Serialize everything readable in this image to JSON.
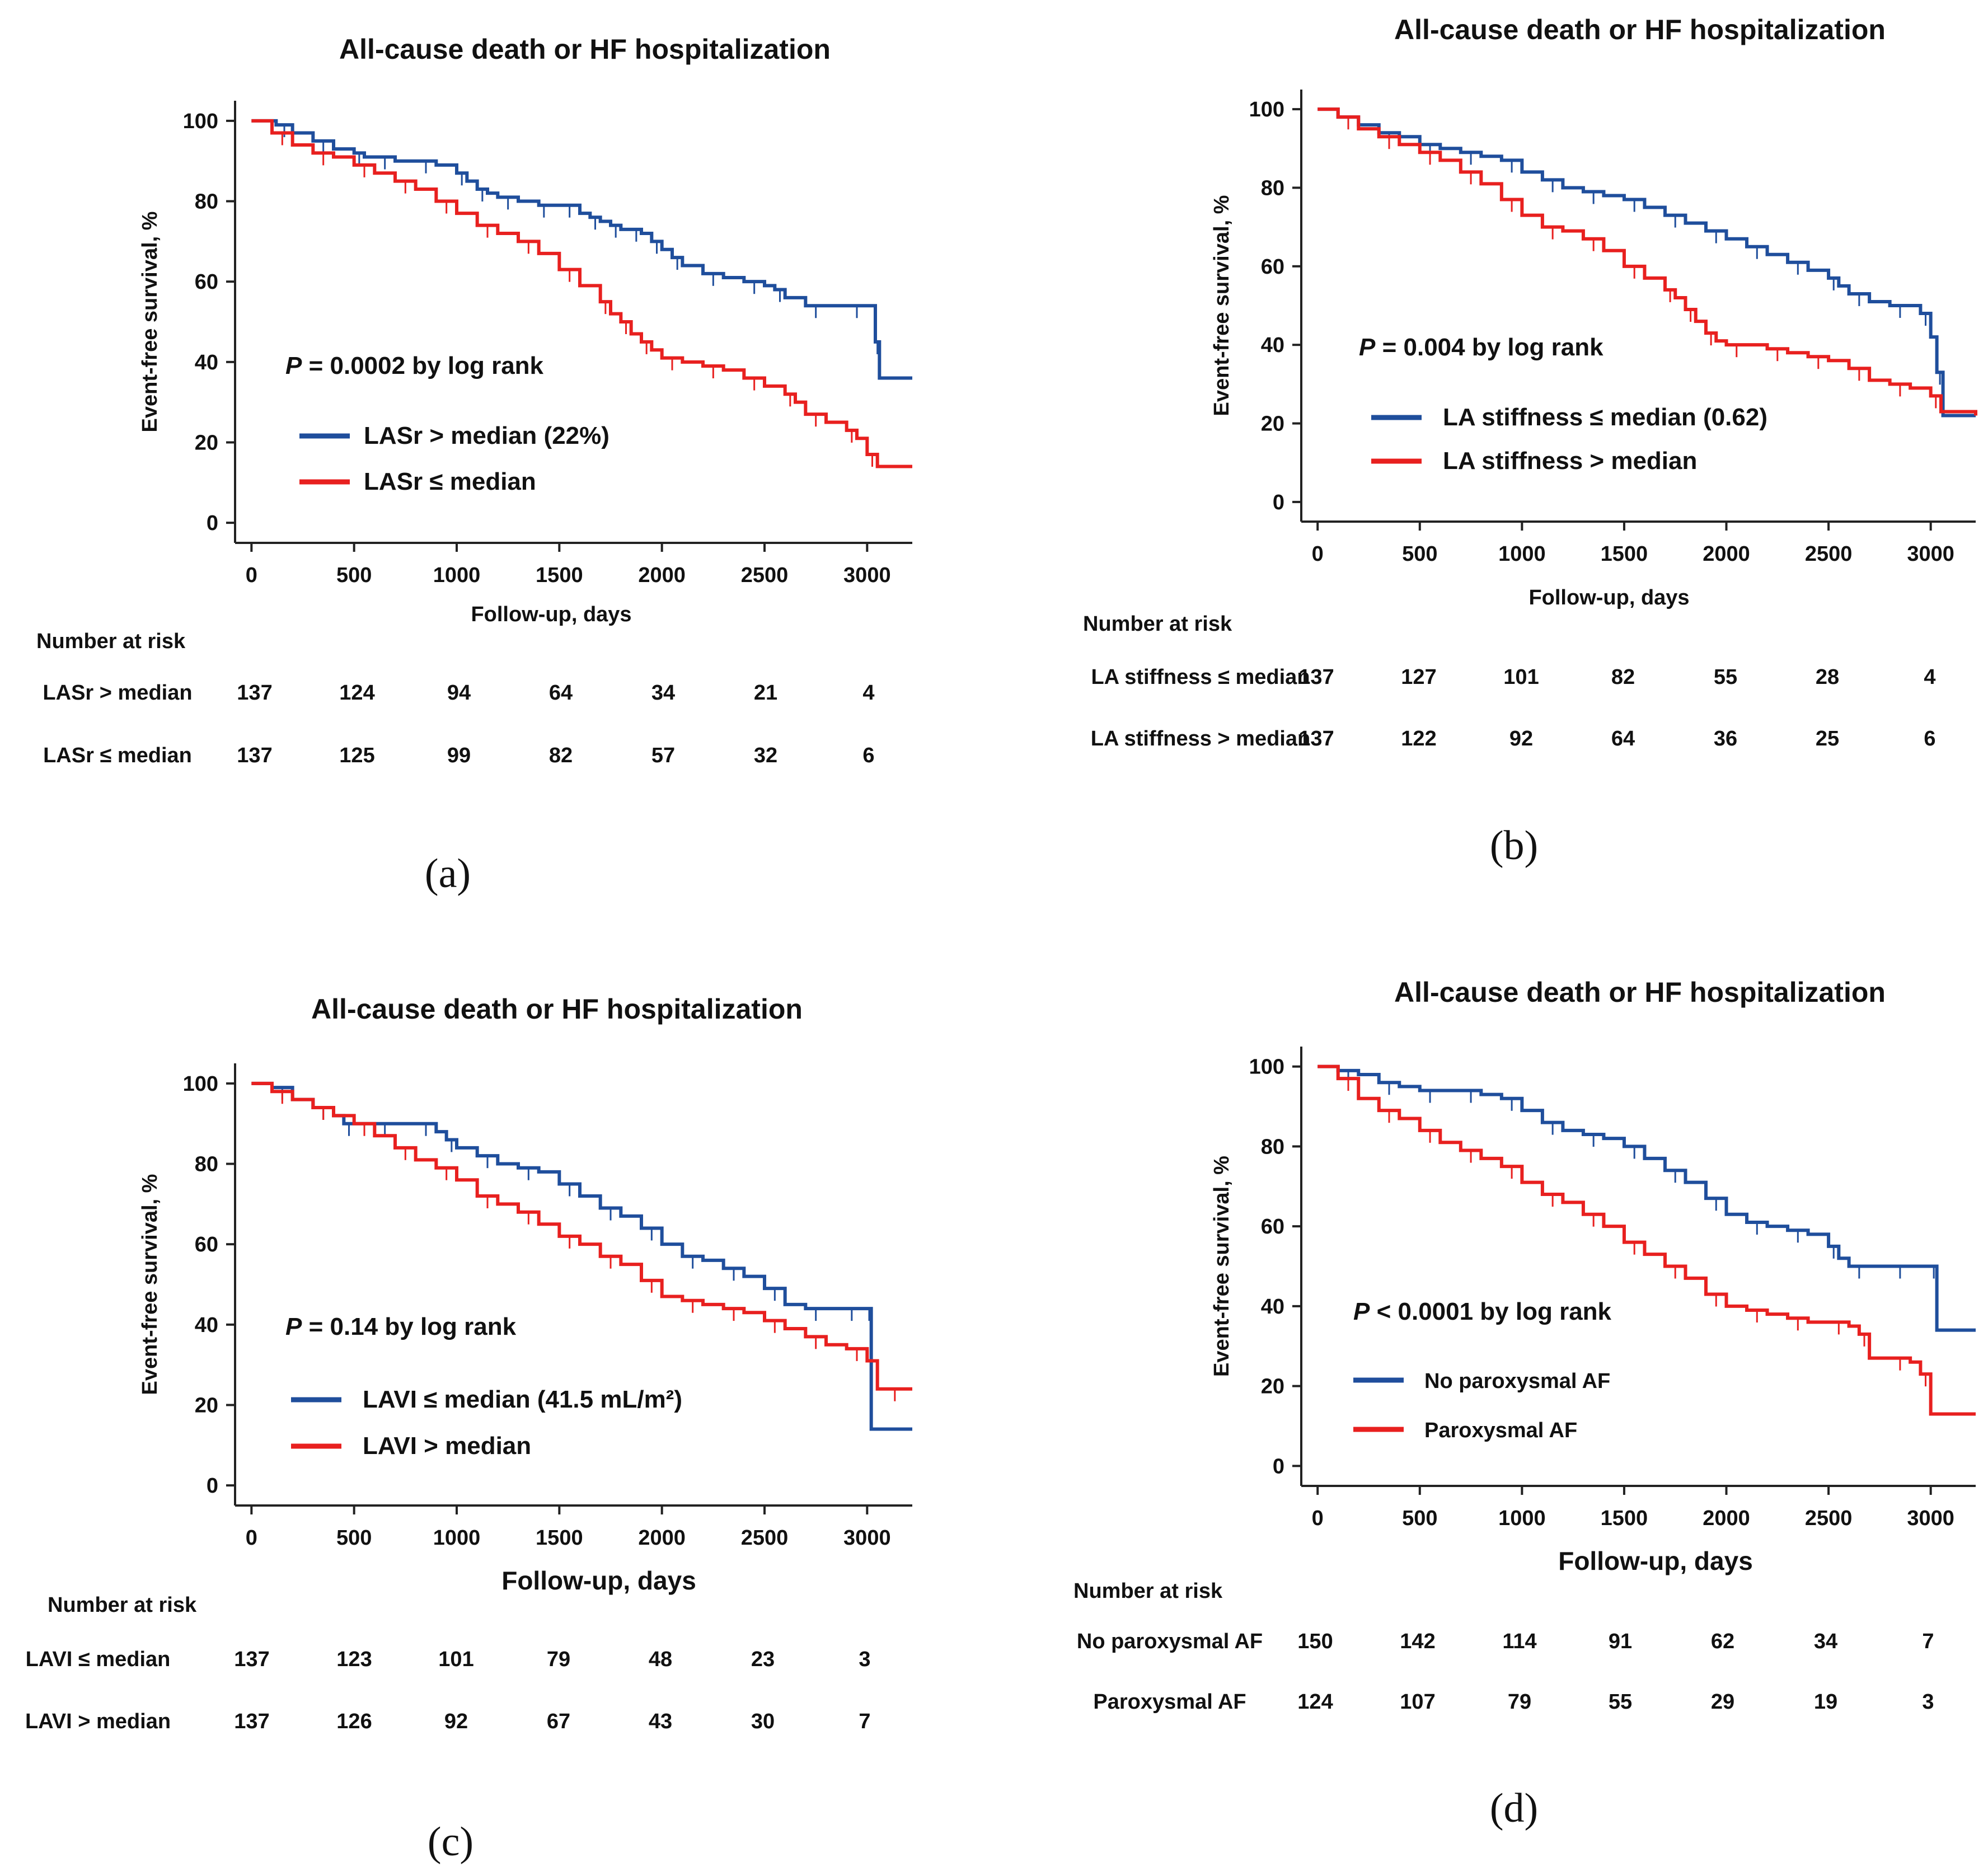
{
  "colors": {
    "blue": "#1f4e9c",
    "red": "#e8201f"
  },
  "chart_data": [
    {
      "type": "line",
      "panel_label": "(a)",
      "title": "All-cause death or HF hospitalization",
      "xlabel": "Follow-up, days",
      "ylabel": "Event-free survival, %",
      "xlim": [
        -80,
        3220
      ],
      "ylim": [
        -5,
        105
      ],
      "xticks": [
        0,
        500,
        1000,
        1500,
        2000,
        2500,
        3000
      ],
      "yticks": [
        0,
        20,
        40,
        60,
        80,
        100
      ],
      "pvalue": {
        "prefix": "P",
        "text": " = 0.0002 by log rank"
      },
      "series": [
        {
          "name": "LASr > median (22%)",
          "risk_label": "LASr > median",
          "color": "blue",
          "x": [
            0,
            120,
            200,
            300,
            400,
            500,
            550,
            600,
            700,
            800,
            900,
            1000,
            1050,
            1100,
            1150,
            1200,
            1300,
            1400,
            1450,
            1500,
            1600,
            1650,
            1700,
            1750,
            1800,
            1850,
            1900,
            1950,
            2000,
            2050,
            2100,
            2200,
            2300,
            2400,
            2500,
            2550,
            2600,
            2700,
            2800,
            2900,
            3000,
            3040,
            3060,
            3220
          ],
          "y": [
            100,
            99,
            97,
            95,
            93,
            92,
            91,
            91,
            90,
            90,
            89,
            87,
            85,
            83,
            82,
            81,
            80,
            79,
            79,
            79,
            77,
            76,
            75,
            74,
            73,
            73,
            72,
            70,
            68,
            66,
            64,
            62,
            61,
            60,
            59,
            58,
            56,
            54,
            54,
            54,
            54,
            45,
            36,
            36
          ],
          "risk": [
            137,
            124,
            94,
            64,
            34,
            21,
            4
          ]
        },
        {
          "name": "LASr ≤ median",
          "risk_label": "LASr ≤ median",
          "color": "red",
          "x": [
            0,
            100,
            200,
            300,
            400,
            500,
            600,
            700,
            800,
            900,
            1000,
            1100,
            1200,
            1300,
            1400,
            1500,
            1600,
            1700,
            1750,
            1800,
            1850,
            1900,
            1950,
            2000,
            2100,
            2200,
            2300,
            2400,
            2500,
            2600,
            2650,
            2700,
            2800,
            2900,
            2950,
            3000,
            3050,
            3220
          ],
          "y": [
            100,
            97,
            94,
            92,
            91,
            89,
            87,
            85,
            83,
            80,
            77,
            74,
            72,
            70,
            67,
            63,
            59,
            55,
            52,
            50,
            47,
            45,
            43,
            41,
            40,
            39,
            38,
            36,
            34,
            32,
            30,
            27,
            25,
            23,
            21,
            17,
            14,
            14
          ],
          "risk": [
            137,
            125,
            99,
            82,
            57,
            32,
            6
          ]
        }
      ],
      "risk_header": "Number at risk",
      "risk_times": [
        0,
        500,
        1000,
        1500,
        2000,
        2500,
        3000
      ]
    },
    {
      "type": "line",
      "panel_label": "(b)",
      "title": "All-cause death or HF hospitalization",
      "xlabel": "Follow-up, days",
      "ylabel": "Event-free survival, %",
      "xlim": [
        -80,
        3220
      ],
      "ylim": [
        -5,
        105
      ],
      "xticks": [
        0,
        500,
        1000,
        1500,
        2000,
        2500,
        3000
      ],
      "yticks": [
        0,
        20,
        40,
        60,
        80,
        100
      ],
      "pvalue": {
        "prefix": "P",
        "text": " = 0.004 by log rank"
      },
      "series": [
        {
          "name": "LA stiffness ≤ median (0.62)",
          "risk_label": "LA stiffness ≤ median",
          "color": "blue",
          "x": [
            0,
            100,
            200,
            300,
            400,
            500,
            600,
            700,
            800,
            900,
            1000,
            1100,
            1200,
            1300,
            1400,
            1500,
            1600,
            1700,
            1800,
            1900,
            2000,
            2100,
            2200,
            2300,
            2400,
            2500,
            2550,
            2600,
            2700,
            2800,
            2900,
            2950,
            3000,
            3030,
            3060,
            3220
          ],
          "y": [
            100,
            98,
            96,
            94,
            93,
            91,
            90,
            89,
            88,
            87,
            84,
            82,
            80,
            79,
            78,
            77,
            75,
            73,
            71,
            69,
            67,
            65,
            63,
            61,
            59,
            57,
            55,
            53,
            51,
            50,
            50,
            48,
            42,
            33,
            22,
            22
          ],
          "risk": [
            137,
            127,
            101,
            82,
            55,
            28,
            4
          ]
        },
        {
          "name": "LA stiffness > median",
          "risk_label": "LA stiffness > median",
          "color": "red",
          "x": [
            0,
            100,
            200,
            300,
            400,
            500,
            600,
            700,
            800,
            900,
            1000,
            1100,
            1200,
            1300,
            1400,
            1500,
            1600,
            1700,
            1750,
            1800,
            1850,
            1900,
            1950,
            2000,
            2100,
            2200,
            2300,
            2400,
            2500,
            2600,
            2700,
            2800,
            2900,
            3000,
            3050,
            3220
          ],
          "y": [
            100,
            98,
            95,
            93,
            91,
            89,
            87,
            84,
            81,
            77,
            73,
            70,
            69,
            67,
            64,
            60,
            57,
            54,
            52,
            49,
            46,
            43,
            41,
            40,
            40,
            39,
            38,
            37,
            36,
            34,
            31,
            30,
            29,
            27,
            23,
            22
          ],
          "risk": [
            137,
            122,
            92,
            64,
            36,
            25,
            6
          ]
        }
      ],
      "risk_header": "Number at risk",
      "risk_times": [
        0,
        500,
        1000,
        1500,
        2000,
        2500,
        3000
      ]
    },
    {
      "type": "line",
      "panel_label": "(c)",
      "title": "All-cause death or HF hospitalization",
      "xlabel": "Follow-up, days",
      "ylabel": "Event-free survival, %",
      "xlim": [
        -80,
        3220
      ],
      "ylim": [
        -5,
        105
      ],
      "xticks": [
        0,
        500,
        1000,
        1500,
        2000,
        2500,
        3000
      ],
      "yticks": [
        0,
        20,
        40,
        60,
        80,
        100
      ],
      "pvalue": {
        "prefix": "P",
        "text": " = 0.14 by log rank"
      },
      "series": [
        {
          "name": "LAVI ≤ median (41.5 mL/m²)",
          "risk_label": "LAVI ≤ median",
          "color": "blue",
          "x": [
            0,
            100,
            200,
            300,
            400,
            450,
            500,
            600,
            700,
            800,
            900,
            950,
            1000,
            1100,
            1200,
            1300,
            1400,
            1500,
            1600,
            1700,
            1800,
            1900,
            2000,
            2100,
            2200,
            2300,
            2400,
            2500,
            2600,
            2700,
            2800,
            2900,
            2950,
            3000,
            3020,
            3220
          ],
          "y": [
            100,
            99,
            96,
            94,
            92,
            90,
            90,
            90,
            90,
            90,
            88,
            86,
            84,
            82,
            80,
            79,
            78,
            75,
            72,
            69,
            67,
            64,
            60,
            57,
            56,
            54,
            52,
            49,
            45,
            44,
            44,
            44,
            44,
            44,
            14,
            14
          ],
          "risk": [
            137,
            123,
            101,
            79,
            48,
            23,
            3
          ]
        },
        {
          "name": "LAVI > median",
          "risk_label": "LAVI > median",
          "color": "red",
          "x": [
            0,
            100,
            200,
            300,
            400,
            500,
            600,
            700,
            800,
            900,
            1000,
            1100,
            1200,
            1300,
            1400,
            1500,
            1600,
            1700,
            1800,
            1900,
            2000,
            2100,
            2200,
            2300,
            2400,
            2500,
            2600,
            2700,
            2800,
            2900,
            3000,
            3050,
            3220
          ],
          "y": [
            100,
            98,
            96,
            94,
            92,
            90,
            87,
            84,
            81,
            79,
            76,
            72,
            70,
            68,
            65,
            62,
            60,
            57,
            55,
            51,
            47,
            46,
            45,
            44,
            43,
            41,
            39,
            37,
            35,
            34,
            31,
            24,
            24
          ],
          "risk": [
            137,
            126,
            92,
            67,
            43,
            30,
            7
          ]
        }
      ],
      "risk_header": "Number at risk",
      "risk_times": [
        0,
        500,
        1000,
        1500,
        2000,
        2500,
        3000
      ]
    },
    {
      "type": "line",
      "panel_label": "(d)",
      "title": "All-cause death or HF hospitalization",
      "xlabel": "Follow-up, days",
      "ylabel": "Event-free survival, %",
      "xlim": [
        -80,
        3220
      ],
      "ylim": [
        -5,
        105
      ],
      "xticks": [
        0,
        500,
        1000,
        1500,
        2000,
        2500,
        3000
      ],
      "yticks": [
        0,
        20,
        40,
        60,
        80,
        100
      ],
      "pvalue": {
        "prefix": "P",
        "text": " < 0.0001 by log rank"
      },
      "series": [
        {
          "name": "No paroxysmal AF",
          "risk_label": "No paroxysmal AF",
          "color": "blue",
          "x": [
            0,
            100,
            200,
            300,
            400,
            500,
            600,
            700,
            800,
            900,
            1000,
            1100,
            1200,
            1300,
            1400,
            1500,
            1600,
            1700,
            1800,
            1900,
            2000,
            2100,
            2200,
            2300,
            2400,
            2500,
            2550,
            2600,
            2700,
            2800,
            2900,
            3000,
            3030,
            3220
          ],
          "y": [
            100,
            99,
            98,
            96,
            95,
            94,
            94,
            94,
            93,
            92,
            89,
            86,
            84,
            83,
            82,
            80,
            77,
            74,
            71,
            67,
            63,
            61,
            60,
            59,
            58,
            55,
            52,
            50,
            50,
            50,
            50,
            50,
            34,
            34
          ],
          "risk": [
            150,
            142,
            114,
            91,
            62,
            34,
            7
          ]
        },
        {
          "name": "Paroxysmal AF",
          "risk_label": "Paroxysmal AF",
          "color": "red",
          "x": [
            0,
            100,
            200,
            300,
            400,
            500,
            600,
            700,
            800,
            900,
            1000,
            1100,
            1200,
            1300,
            1400,
            1500,
            1600,
            1700,
            1800,
            1900,
            2000,
            2100,
            2200,
            2300,
            2400,
            2500,
            2600,
            2650,
            2700,
            2800,
            2900,
            2950,
            3000,
            3220
          ],
          "y": [
            100,
            97,
            92,
            89,
            87,
            84,
            81,
            79,
            77,
            75,
            71,
            68,
            66,
            63,
            60,
            56,
            53,
            50,
            47,
            43,
            40,
            39,
            38,
            37,
            36,
            36,
            35,
            33,
            27,
            27,
            26,
            23,
            13,
            13
          ],
          "risk": [
            124,
            107,
            79,
            55,
            29,
            19,
            3
          ]
        }
      ],
      "risk_header": "Number at risk",
      "risk_times": [
        0,
        500,
        1000,
        1500,
        2000,
        2500,
        3000
      ]
    }
  ]
}
